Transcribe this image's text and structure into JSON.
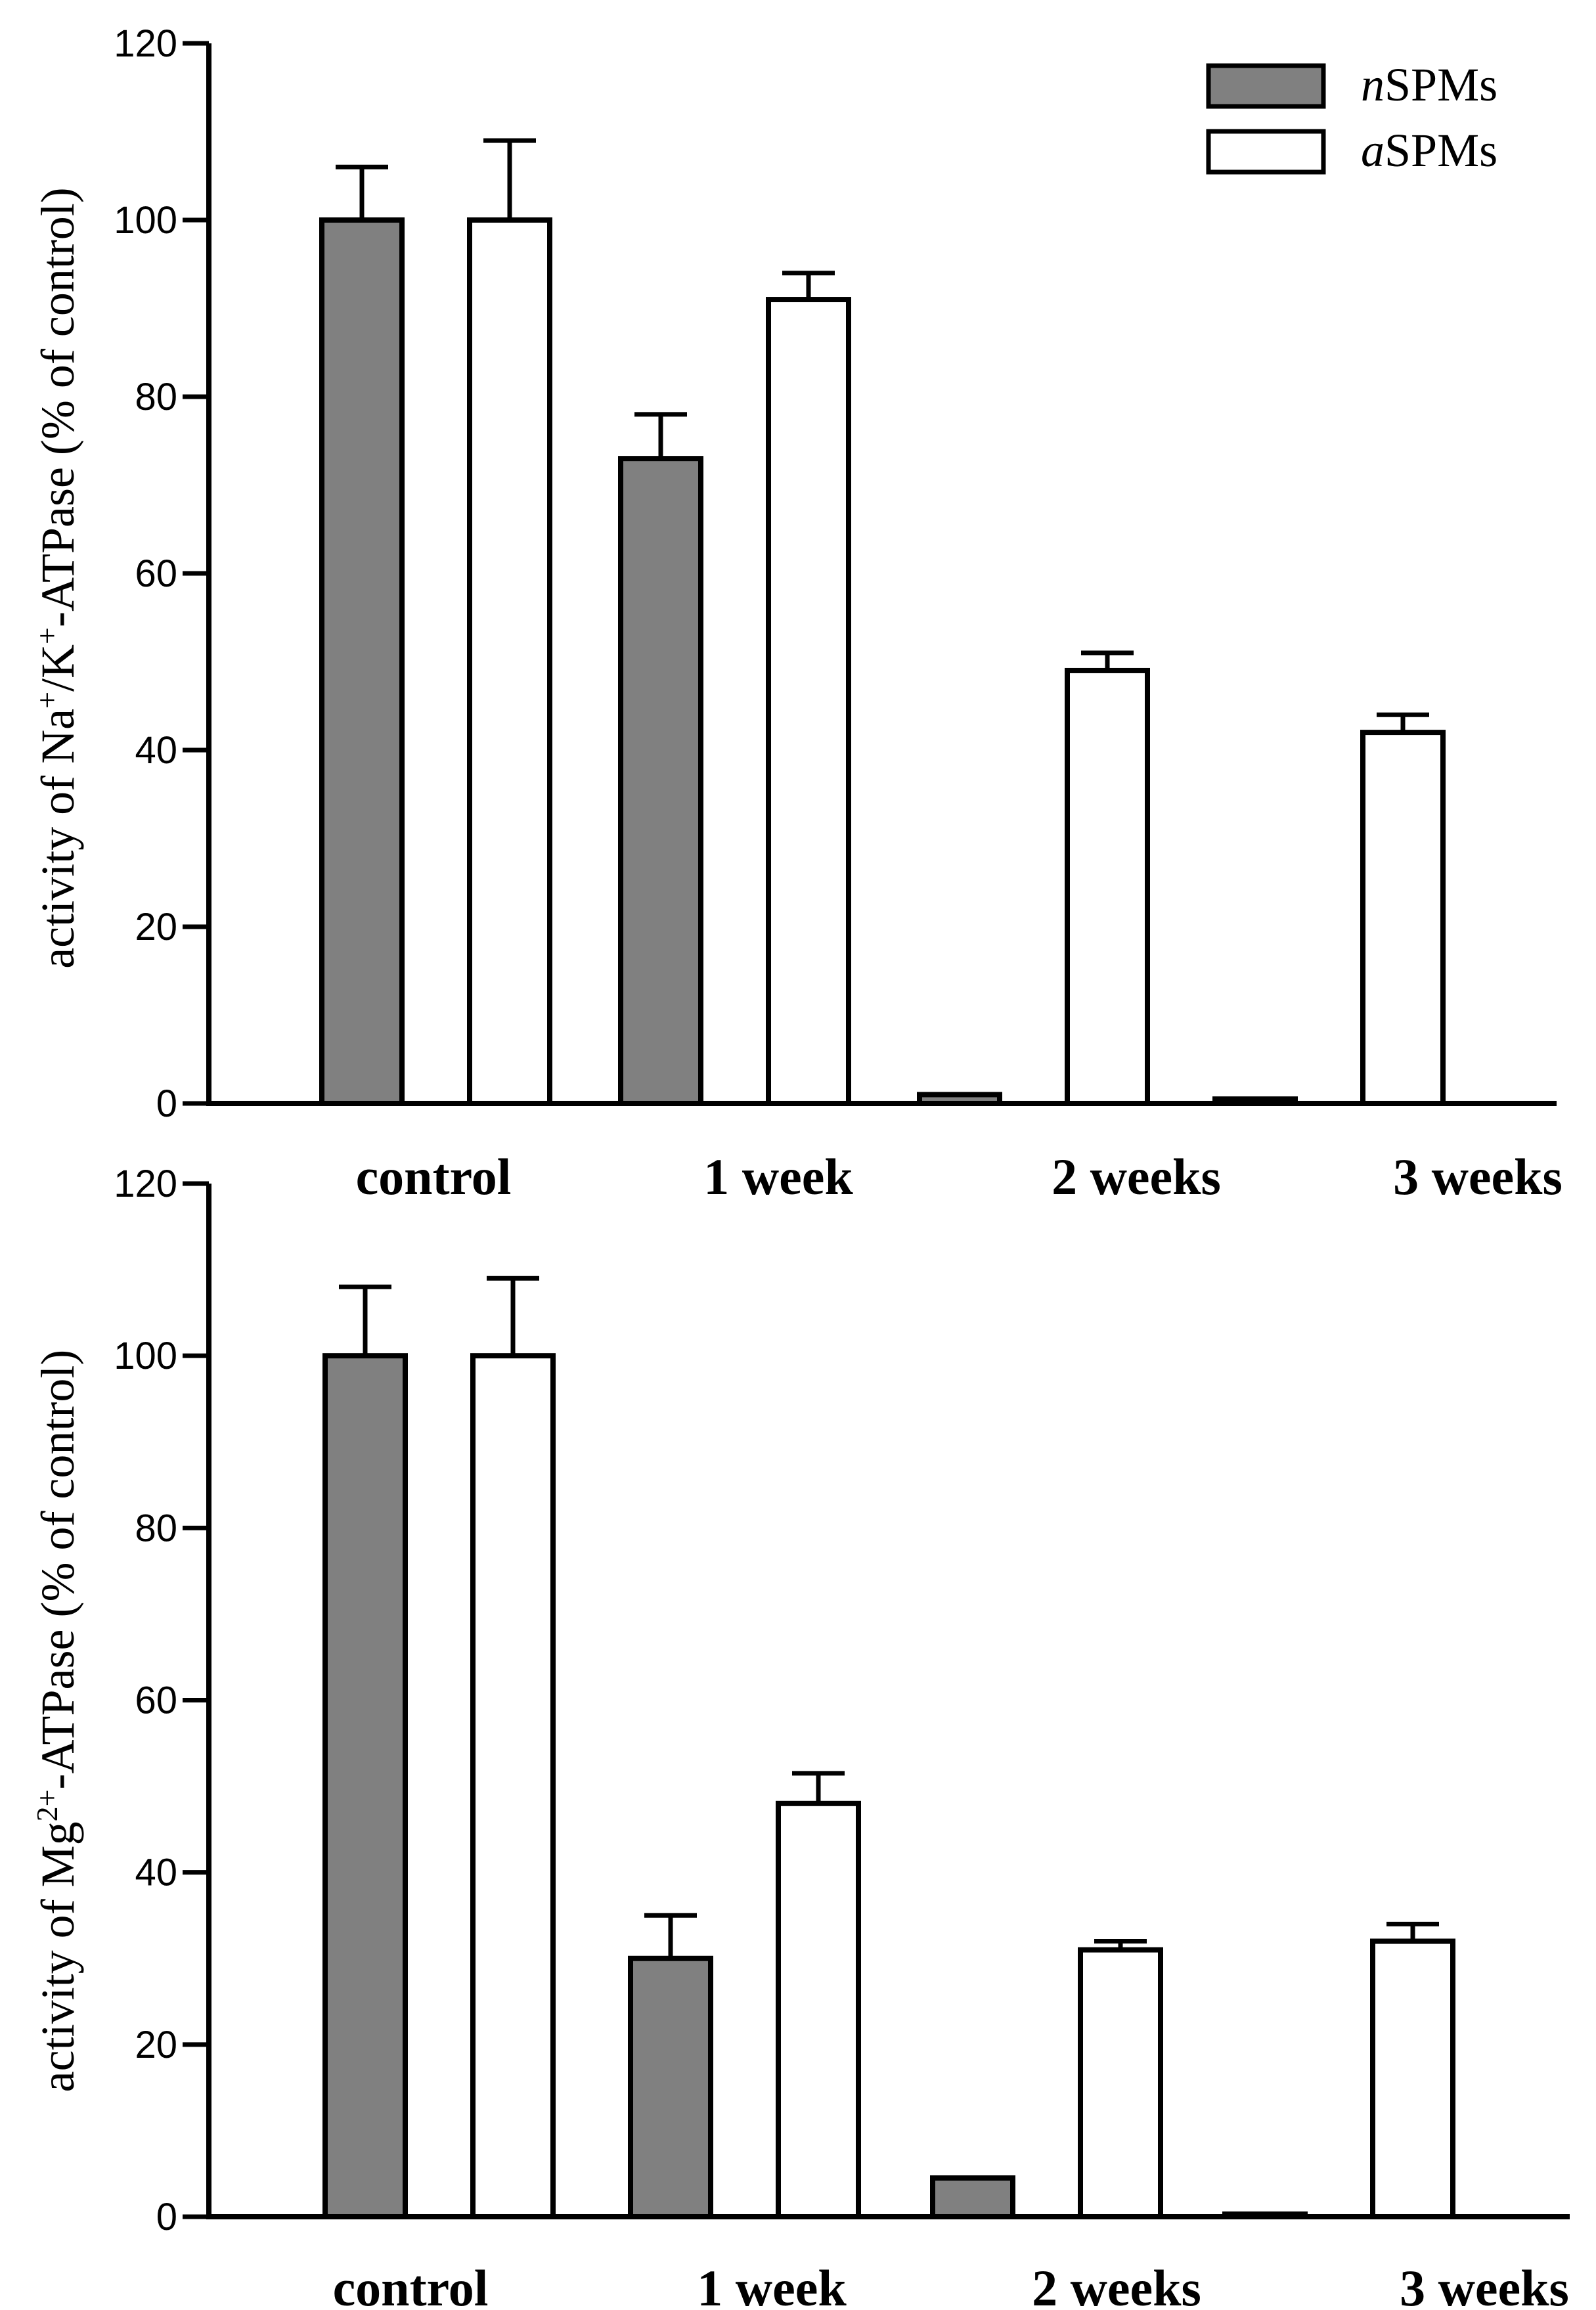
{
  "chart_data": [
    {
      "type": "bar",
      "ylabel_parts": [
        "activity of Na",
        "+",
        "/K",
        "+",
        "-ATPase (% of control)"
      ],
      "ylim": [
        0,
        120
      ],
      "yticks": [
        "0",
        "20",
        "40",
        "60",
        "80",
        "100",
        "120"
      ],
      "categories": [
        "control",
        "1 week",
        "2 weeks",
        "3 weeks"
      ],
      "series": [
        {
          "name": "nSPMs",
          "name_prefix": "n",
          "name_suffix": "SPMs",
          "color": "#808080",
          "values": [
            100,
            73,
            1,
            0.5
          ],
          "errors": [
            6,
            5,
            0,
            0
          ]
        },
        {
          "name": "aSPMs",
          "name_prefix": "a",
          "name_suffix": "SPMs",
          "color": "#ffffff",
          "values": [
            100,
            91,
            49,
            42
          ],
          "errors": [
            9,
            3,
            2,
            2
          ]
        }
      ],
      "legend": "top-right"
    },
    {
      "type": "bar",
      "ylabel_parts": [
        "activity of Mg",
        "2+",
        "-ATPase (% of control)"
      ],
      "ylim": [
        0,
        120
      ],
      "yticks": [
        "0",
        "20",
        "40",
        "60",
        "80",
        "100",
        "120"
      ],
      "categories": [
        "control",
        "1 week",
        "2 weeks",
        "3 weeks"
      ],
      "series": [
        {
          "name": "nSPMs",
          "color": "#808080",
          "values": [
            100,
            30,
            4.5,
            0
          ],
          "errors": [
            8,
            5,
            0,
            0
          ]
        },
        {
          "name": "aSPMs",
          "color": "#ffffff",
          "values": [
            100,
            48,
            31,
            32
          ],
          "errors": [
            9,
            3.5,
            1,
            2
          ]
        }
      ]
    }
  ]
}
